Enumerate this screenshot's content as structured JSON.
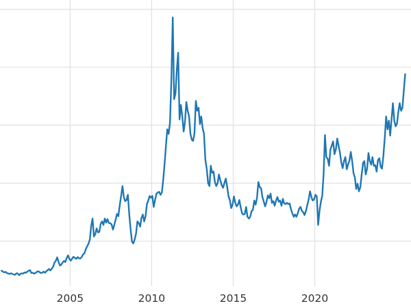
{
  "style": {
    "background_color": "#ffffff",
    "line_color": "#1f77b4",
    "grid_color": "#e0e0e0",
    "tick_label_color": "#333333"
  },
  "chart_data": {
    "type": "line",
    "title": "",
    "xlabel": "",
    "ylabel": "",
    "grid": true,
    "legend": false,
    "x_tick_labels": [
      "2005",
      "2010",
      "2015",
      "2020"
    ],
    "x_tick_values": [
      2005,
      2010,
      2015,
      2020
    ],
    "y_gridline_values": [
      10,
      20,
      30,
      40,
      50
    ],
    "xlim": [
      2000.7,
      2025.9
    ],
    "ylim": [
      0,
      51.6
    ],
    "series": [
      {
        "x_start": 2000.7917,
        "x_step_years": 0.0833333,
        "values": [
          4.9,
          4.75,
          4.6,
          4.7,
          4.5,
          4.4,
          4.35,
          4.45,
          4.35,
          4.25,
          4.2,
          4.45,
          4.4,
          4.15,
          4.35,
          4.45,
          4.4,
          4.6,
          4.55,
          4.75,
          4.9,
          5.0,
          4.5,
          4.55,
          4.4,
          4.5,
          4.7,
          4.8,
          4.65,
          4.5,
          4.55,
          4.75,
          4.55,
          4.8,
          5.0,
          5.2,
          4.95,
          5.25,
          5.6,
          6.3,
          6.6,
          7.2,
          6.4,
          5.8,
          5.95,
          6.3,
          6.6,
          6.4,
          7.1,
          7.55,
          6.9,
          6.65,
          7.0,
          7.3,
          7.1,
          6.95,
          7.25,
          7.05,
          7.0,
          7.25,
          7.7,
          7.9,
          8.6,
          9.1,
          9.55,
          10.3,
          12.6,
          13.9,
          10.8,
          11.2,
          12.2,
          11.5,
          11.6,
          13.0,
          13.4,
          12.8,
          13.9,
          13.2,
          13.8,
          13.15,
          13.1,
          12.9,
          12.0,
          12.8,
          13.7,
          14.7,
          14.3,
          16.2,
          17.8,
          19.5,
          17.6,
          16.9,
          17.1,
          18.0,
          14.6,
          12.0,
          9.9,
          9.6,
          10.3,
          11.3,
          13.4,
          13.1,
          12.5,
          14.0,
          14.6,
          13.4,
          14.3,
          16.4,
          17.0,
          17.8,
          17.5,
          17.8,
          15.9,
          17.1,
          18.2,
          18.4,
          18.5,
          18.0,
          18.4,
          20.6,
          23.4,
          26.5,
          29.3,
          28.5,
          30.5,
          38.0,
          48.6,
          34.5,
          35.5,
          39.5,
          42.5,
          31.0,
          33.5,
          31.5,
          28.9,
          30.5,
          34.0,
          32.5,
          31.5,
          28.5,
          27.5,
          27.3,
          28.6,
          34.2,
          32.5,
          33.0,
          30.2,
          31.5,
          29.5,
          28.5,
          24.0,
          22.5,
          20.0,
          19.5,
          23.0,
          21.8,
          22.0,
          20.2,
          19.5,
          20.0,
          21.5,
          20.5,
          19.7,
          19.2,
          20.0,
          20.8,
          19.5,
          17.8,
          17.1,
          15.7,
          16.3,
          17.7,
          16.6,
          16.0,
          16.3,
          17.1,
          15.8,
          14.8,
          14.6,
          14.7,
          15.9,
          14.2,
          13.9,
          14.2,
          15.2,
          15.4,
          17.0,
          16.3,
          17.5,
          20.2,
          19.3,
          19.1,
          17.6,
          16.8,
          16.0,
          16.8,
          17.9,
          17.4,
          18.2,
          16.6,
          16.9,
          16.1,
          17.0,
          17.6,
          16.8,
          17.0,
          16.1,
          17.3,
          16.5,
          16.4,
          16.6,
          16.4,
          16.5,
          15.5,
          14.8,
          14.2,
          14.6,
          14.2,
          14.8,
          15.6,
          15.9,
          15.2,
          15.0,
          14.5,
          15.2,
          16.2,
          17.2,
          18.6,
          17.6,
          17.0,
          17.2,
          18.0,
          17.7,
          12.8,
          15.3,
          16.8,
          17.8,
          21.5,
          28.3,
          24.5,
          24.2,
          23.0,
          25.8,
          26.5,
          27.2,
          25.0,
          25.8,
          27.7,
          26.5,
          25.3,
          23.6,
          22.6,
          23.8,
          24.5,
          22.4,
          23.2,
          23.9,
          25.4,
          23.8,
          21.7,
          21.0,
          19.0,
          19.9,
          18.6,
          19.3,
          21.5,
          23.5,
          23.8,
          21.5,
          22.5,
          25.2,
          23.8,
          23.2,
          24.5,
          23.0,
          23.1,
          22.0,
          24.0,
          24.3,
          22.8,
          22.5,
          24.8,
          27.8,
          31.5,
          29.3,
          30.8,
          28.2,
          31.0,
          33.8,
          30.8,
          29.8,
          30.3,
          32.3,
          33.8,
          32.5,
          33.0,
          36.0,
          38.8
        ]
      }
    ]
  }
}
